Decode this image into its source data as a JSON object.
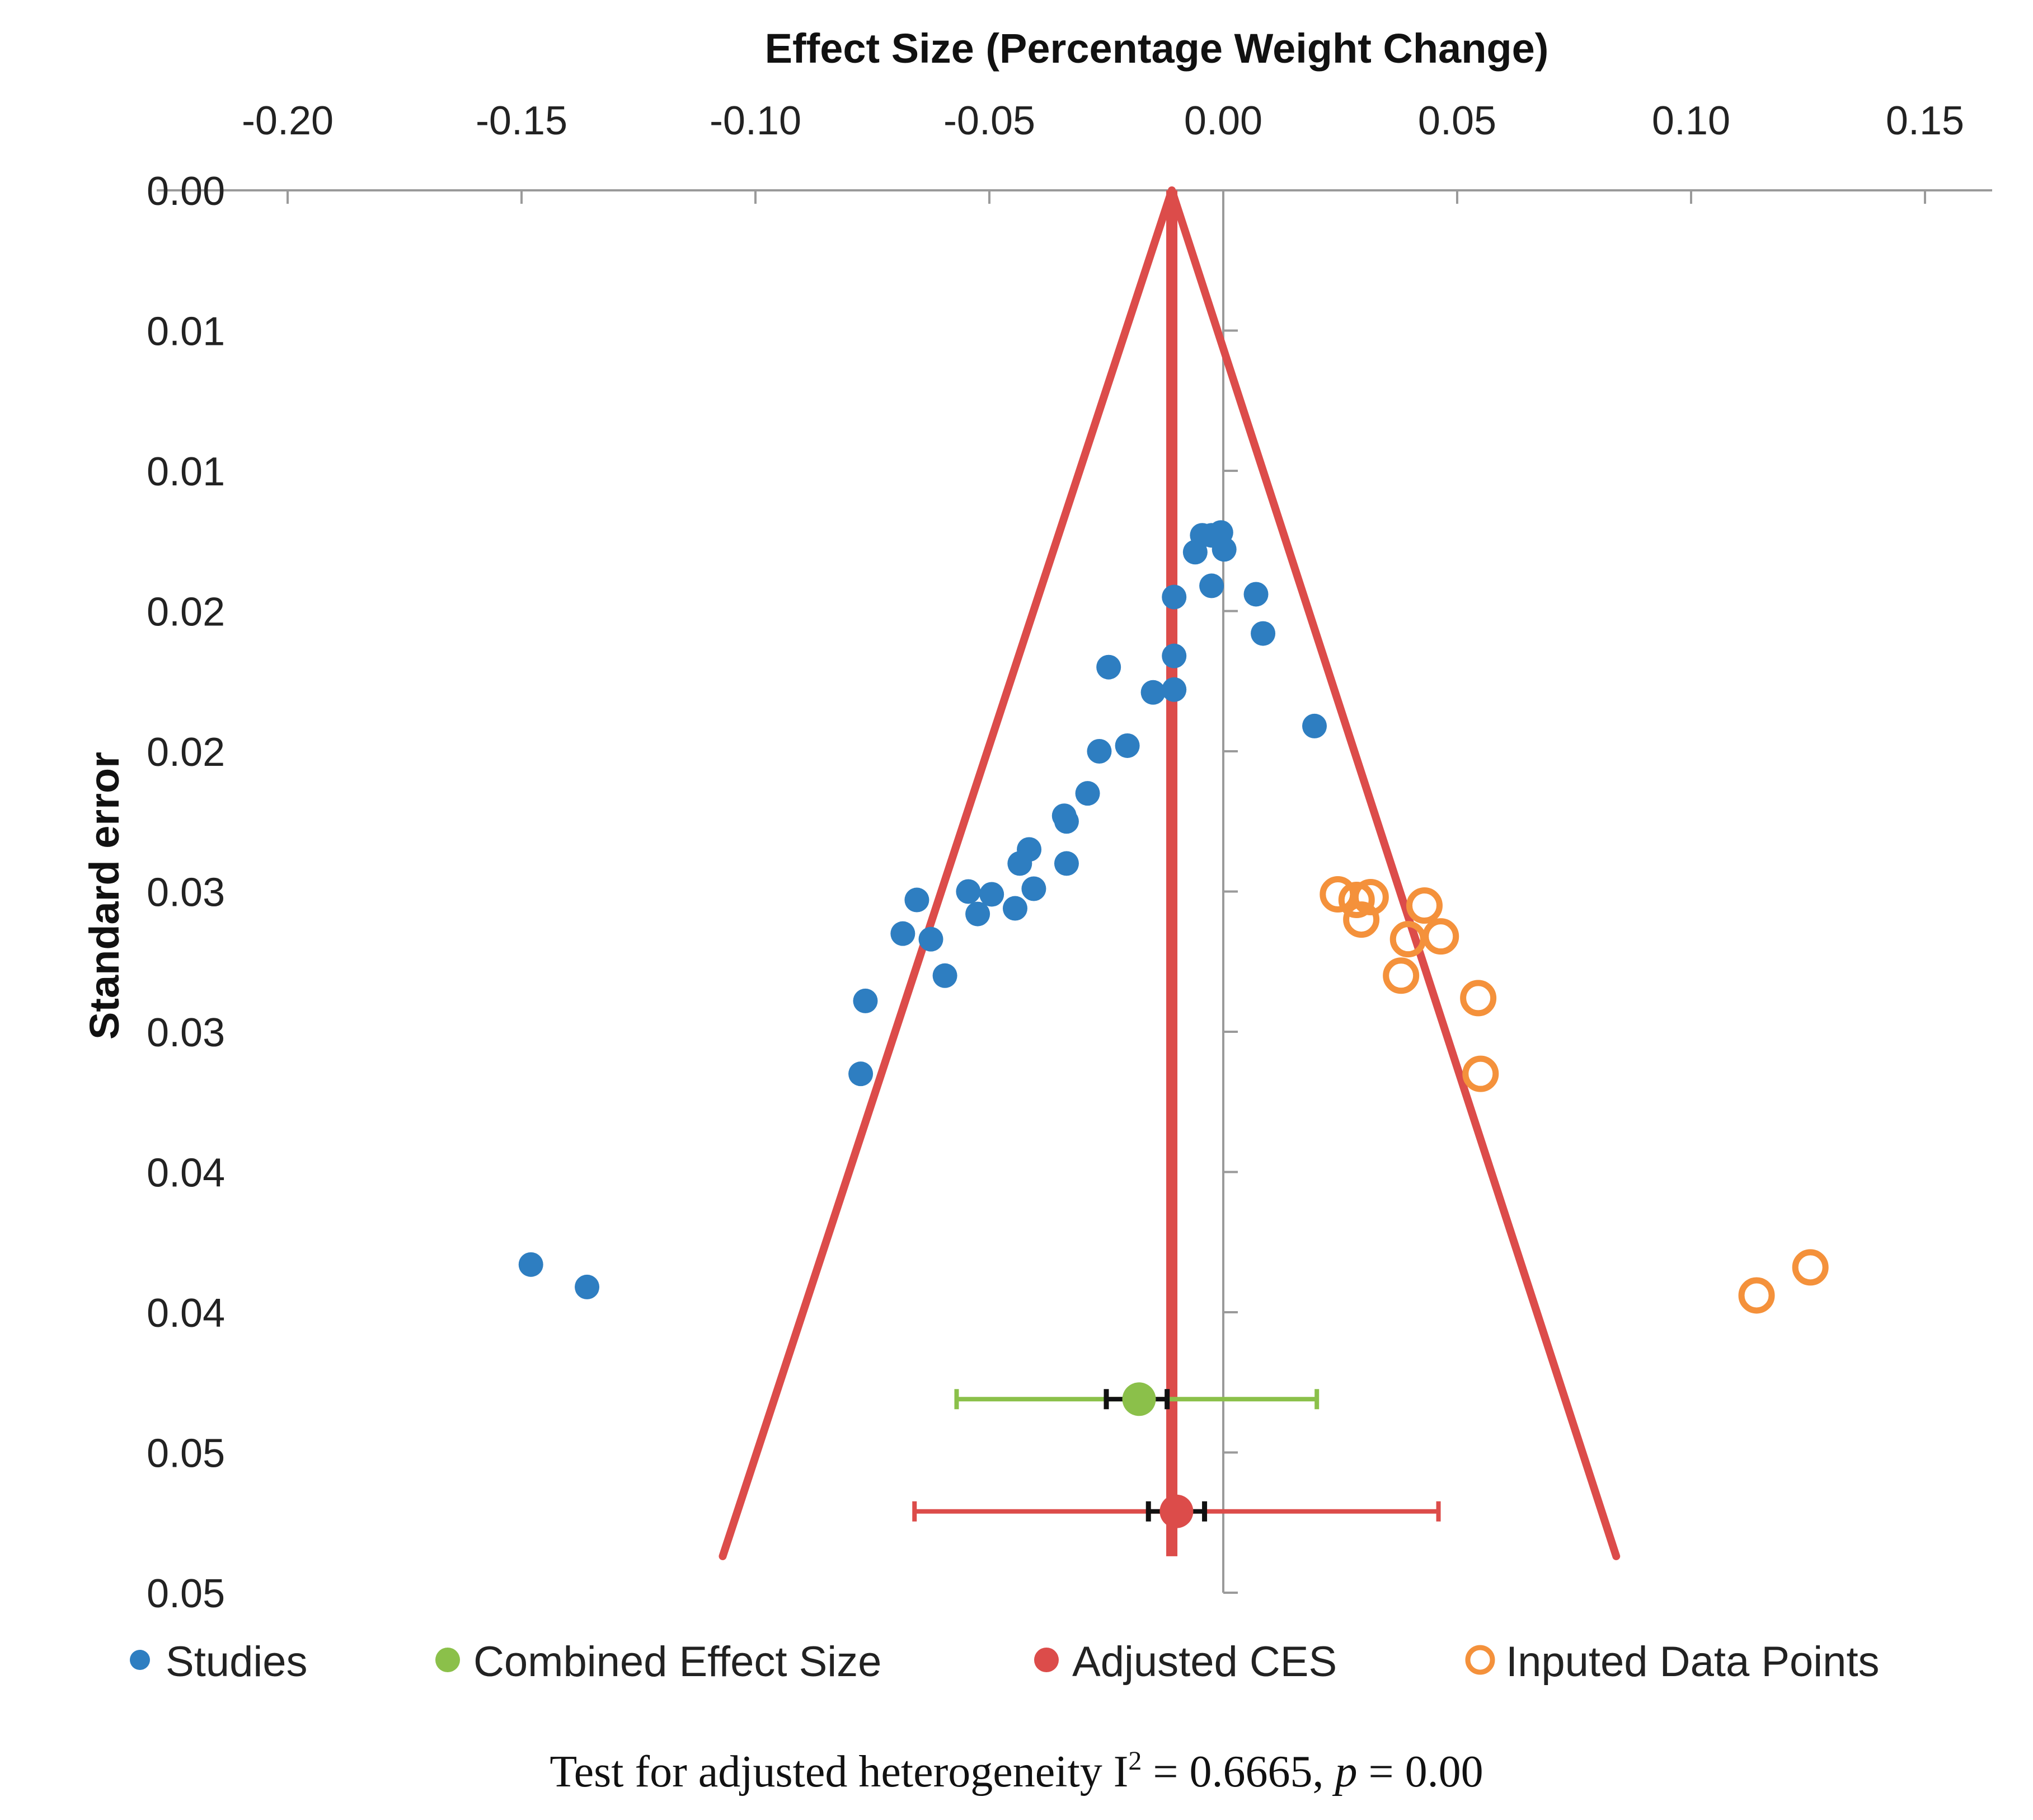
{
  "chart_data": {
    "type": "scatter",
    "title": "Effect Size (Percentage Weight Change)",
    "xlabel": "Effect Size (Percentage Weight Change)",
    "ylabel": "Standard error",
    "xlim": [
      -0.2,
      0.15
    ],
    "ylim": [
      0.0,
      0.05
    ],
    "x_ticks": [
      "-0.20",
      "-0.15",
      "-0.10",
      "-0.05",
      "0.00",
      "0.05",
      "0.10",
      "0.15"
    ],
    "x_tick_values": [
      -0.2,
      -0.15,
      -0.1,
      -0.05,
      0.0,
      0.05,
      0.1,
      0.15
    ],
    "y_ticks": [
      "0.00",
      "0.01",
      "0.01",
      "0.02",
      "0.02",
      "0.03",
      "0.03",
      "0.04",
      "0.04",
      "0.05",
      "0.05"
    ],
    "y_tick_values": [
      0.0,
      0.005,
      0.01,
      0.015,
      0.02,
      0.025,
      0.03,
      0.035,
      0.04,
      0.045,
      0.05
    ],
    "grid": false,
    "legend_position": "bottom",
    "series": [
      {
        "name": "Studies",
        "marker": "filled-circle",
        "color": "#2E7EC1",
        "points": [
          [
            -0.0045,
            0.0123
          ],
          [
            -0.0025,
            0.0123
          ],
          [
            -0.0005,
            0.0122
          ],
          [
            -0.006,
            0.0129
          ],
          [
            0.0002,
            0.0128
          ],
          [
            -0.0025,
            0.0141
          ],
          [
            0.007,
            0.0144
          ],
          [
            -0.0105,
            0.0145
          ],
          [
            0.0085,
            0.0158
          ],
          [
            -0.0105,
            0.0166
          ],
          [
            -0.0245,
            0.017
          ],
          [
            -0.015,
            0.0179
          ],
          [
            -0.0105,
            0.0178
          ],
          [
            0.0195,
            0.0191
          ],
          [
            -0.0205,
            0.0198
          ],
          [
            -0.0265,
            0.02
          ],
          [
            -0.029,
            0.0215
          ],
          [
            -0.034,
            0.0223
          ],
          [
            -0.0335,
            0.0225
          ],
          [
            -0.0335,
            0.024
          ],
          [
            -0.0415,
            0.0235
          ],
          [
            -0.0435,
            0.024
          ],
          [
            -0.0545,
            0.025
          ],
          [
            -0.0495,
            0.0251
          ],
          [
            -0.0405,
            0.0249
          ],
          [
            -0.0445,
            0.0256
          ],
          [
            -0.0655,
            0.0253
          ],
          [
            -0.0525,
            0.0258
          ],
          [
            -0.0685,
            0.0265
          ],
          [
            -0.0625,
            0.0267
          ],
          [
            -0.0595,
            0.028
          ],
          [
            -0.0765,
            0.0289
          ],
          [
            -0.0775,
            0.0315
          ],
          [
            -0.148,
            0.0383
          ],
          [
            -0.136,
            0.0391
          ]
        ]
      },
      {
        "name": "Combined Effect Size",
        "marker": "filled-circle",
        "color": "#8BC04A",
        "x": -0.018,
        "y": 0.0431,
        "ci_inner": [
          -0.025,
          -0.012
        ],
        "ci_outer": [
          -0.057,
          0.02
        ]
      },
      {
        "name": "Adjusted CES",
        "marker": "filled-circle",
        "color": "#DC4C4A",
        "x": -0.01,
        "y": 0.0471,
        "ci_inner": [
          -0.016,
          -0.004
        ],
        "ci_outer": [
          -0.066,
          0.046
        ]
      },
      {
        "name": "Inputed Data Points",
        "marker": "open-circle",
        "color": "#F4913B",
        "points": [
          [
            0.0245,
            0.0251
          ],
          [
            0.0285,
            0.0253
          ],
          [
            0.0315,
            0.0252
          ],
          [
            0.043,
            0.0255
          ],
          [
            0.0295,
            0.026
          ],
          [
            0.0395,
            0.0267
          ],
          [
            0.0465,
            0.0266
          ],
          [
            0.038,
            0.028
          ],
          [
            0.0545,
            0.0288
          ],
          [
            0.055,
            0.0315
          ],
          [
            0.1255,
            0.0384
          ],
          [
            0.114,
            0.0394
          ]
        ]
      }
    ],
    "funnel": {
      "color": "#DC4C4A",
      "center_line": -0.011,
      "apex": [
        -0.011,
        0.0
      ],
      "left_end": [
        -0.107,
        0.0487
      ],
      "right_end": [
        0.084,
        0.0487
      ]
    },
    "zero_reference_line": 0.0
  },
  "legend": {
    "items": [
      {
        "label": "Studies",
        "color": "#2E7EC1",
        "marker": "filled-circle"
      },
      {
        "label": "Combined Effect Size",
        "color": "#8BC04A",
        "marker": "filled-circle"
      },
      {
        "label": "Adjusted CES",
        "color": "#DC4C4A",
        "marker": "filled-circle"
      },
      {
        "label": "Inputed Data Points",
        "color": "#F4913B",
        "marker": "open-circle"
      }
    ]
  },
  "caption": {
    "prefix": "Test for adjusted heterogeneity I",
    "superscript": "2",
    "middle": " = 0.6665, ",
    "p_symbol": "p",
    "suffix": " = 0.00"
  }
}
